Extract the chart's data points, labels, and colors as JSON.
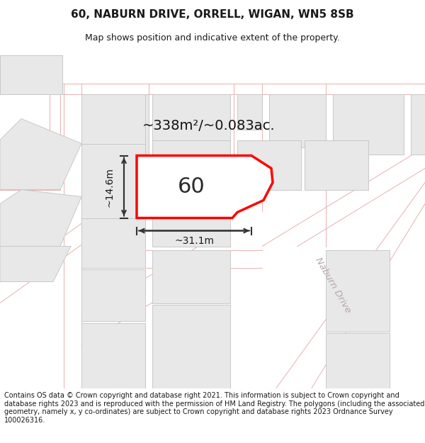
{
  "title_line1": "60, NABURN DRIVE, ORRELL, WIGAN, WN5 8SB",
  "title_line2": "Map shows position and indicative extent of the property.",
  "footer_text": "Contains OS data © Crown copyright and database right 2021. This information is subject to Crown copyright and database rights 2023 and is reproduced with the permission of HM Land Registry. The polygons (including the associated geometry, namely x, y co-ordinates) are subject to Crown copyright and database rights 2023 Ordnance Survey 100026316.",
  "area_label": "~338m²/~0.083ac.",
  "number_label": "60",
  "width_label": "~31.1m",
  "height_label": "~14.6m",
  "map_bg": "#f7f5f5",
  "block_fill": "#e8e8e8",
  "block_edge": "#c8c8c8",
  "road_line": "#e8b0b0",
  "highlight_color": "#ff0000",
  "highlight_fill": "#ffffff",
  "text_color": "#1a1a1a",
  "naburn_color": "#c8b0b0",
  "title_fontsize": 11,
  "subtitle_fontsize": 9,
  "footer_fontsize": 7.0
}
